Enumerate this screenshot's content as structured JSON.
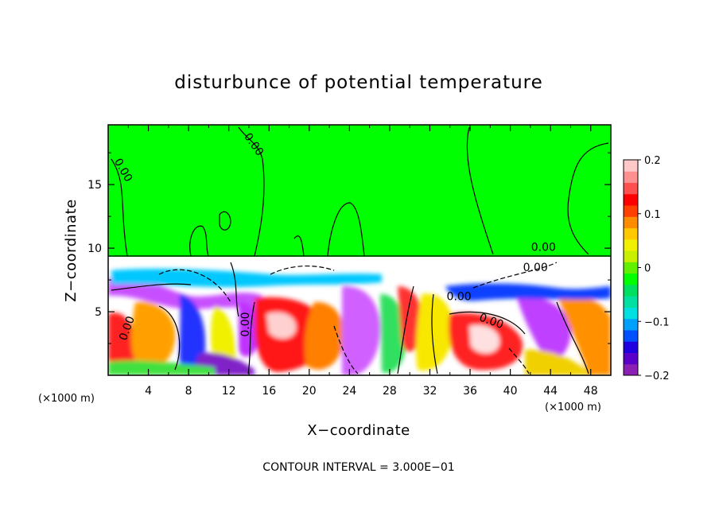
{
  "chart_data": {
    "type": "heatmap",
    "title": "disturbunce of potential temperature",
    "xlabel": "X−coordinate",
    "ylabel": "Z−coordinate",
    "x_unit": "(×1000 m)",
    "z_unit": "(×1000 m)",
    "xlim": [
      0,
      50
    ],
    "ylim": [
      0,
      19.7
    ],
    "x_ticks": [
      4,
      8,
      12,
      16,
      20,
      24,
      28,
      32,
      36,
      40,
      44,
      48
    ],
    "y_ticks": [
      5,
      10,
      15
    ],
    "colorbar": {
      "range": [
        -0.2,
        0.2
      ],
      "ticks": [
        {
          "value": 0.2,
          "label": "0.2"
        },
        {
          "value": 0.1,
          "label": "0.1"
        },
        {
          "value": 0,
          "label": "0"
        },
        {
          "value": -0.1,
          "label": "−0.1"
        },
        {
          "value": -0.2,
          "label": "−0.2"
        }
      ],
      "colors": [
        "#8c1fb4",
        "#5a00c8",
        "#2000e0",
        "#0050ff",
        "#00a0ff",
        "#00e0e0",
        "#00e0a0",
        "#00e060",
        "#00ff00",
        "#60f000",
        "#c8f000",
        "#f0f000",
        "#ffc800",
        "#ff8c00",
        "#ff4000",
        "#ff0000",
        "#ff5050",
        "#ff9090",
        "#ffc8c8"
      ]
    },
    "contour_labels": [
      {
        "x": 14.2,
        "z": 18.0,
        "text": "0.00",
        "angle": 55
      },
      {
        "x": 1.2,
        "z": 16.0,
        "text": "0.00",
        "angle": 60
      },
      {
        "x": 43.3,
        "z": 9.8,
        "text": "0.00",
        "angle": 0
      },
      {
        "x": 42.5,
        "z": 8.2,
        "text": "0.00",
        "angle": 0
      },
      {
        "x": 34.9,
        "z": 5.9,
        "text": "0.00",
        "angle": 0
      },
      {
        "x": 38.0,
        "z": 4.0,
        "text": "0.00",
        "angle": 20
      },
      {
        "x": 14.0,
        "z": 4.0,
        "text": "0.00",
        "angle": -90
      },
      {
        "x": 2.2,
        "z": 3.6,
        "text": "0.00",
        "angle": -70
      }
    ],
    "annotation": "CONTOUR INTERVAL = 3.000E−01",
    "grid": false,
    "legend": "colorbar-right"
  }
}
